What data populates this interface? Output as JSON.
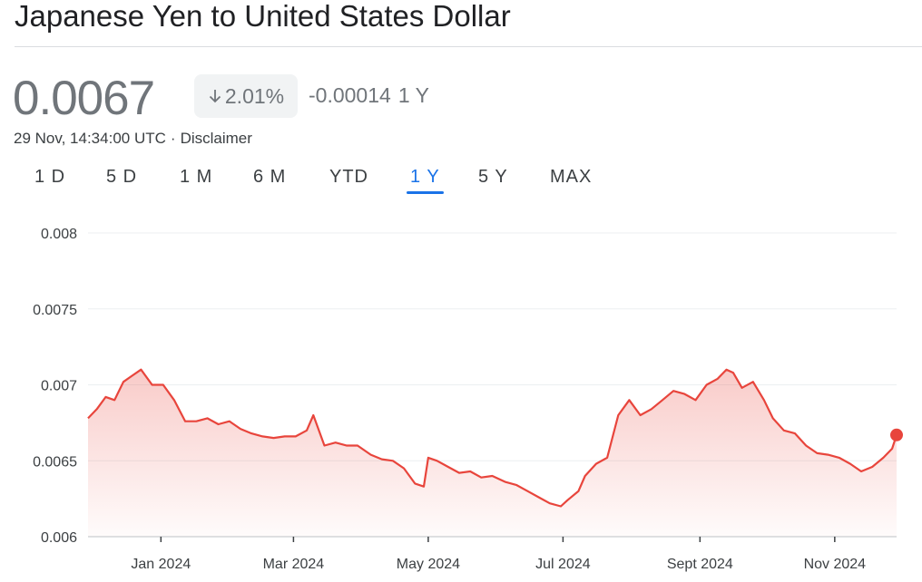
{
  "header": {
    "title": "Japanese Yen to United States Dollar",
    "price": "0.0067",
    "change_percent": "2.01%",
    "change_direction": "down",
    "change_abs": "-0.00014",
    "change_period": "1 Y",
    "timestamp": "29 Nov, 14:34:00 UTC",
    "disclaimer": "Disclaimer"
  },
  "tabs": [
    {
      "label": "1 D",
      "active": false
    },
    {
      "label": "5 D",
      "active": false
    },
    {
      "label": "1 M",
      "active": false
    },
    {
      "label": "6 M",
      "active": false
    },
    {
      "label": "YTD",
      "active": false
    },
    {
      "label": "1 Y",
      "active": true
    },
    {
      "label": "5 Y",
      "active": false
    },
    {
      "label": "MAX",
      "active": false
    }
  ],
  "colors": {
    "line": "#e8453c",
    "accent": "#1a73e8",
    "muted": "#70757a"
  },
  "chart_data": {
    "type": "area",
    "xlabel": "",
    "ylabel": "",
    "ylim": [
      0.006,
      0.008
    ],
    "yticks": [
      0.008,
      0.0075,
      0.007,
      0.0065,
      0.006
    ],
    "ytick_labels": [
      "0.008",
      "0.0075",
      "0.007",
      "0.0065",
      "0.006"
    ],
    "xlim": [
      "2023-11-29",
      "2024-11-29"
    ],
    "xticks": [
      {
        "date": "2024-01-01",
        "label": "Jan 2024"
      },
      {
        "date": "2024-03-01",
        "label": "Mar 2024"
      },
      {
        "date": "2024-05-01",
        "label": "May 2024"
      },
      {
        "date": "2024-07-01",
        "label": "Jul 2024"
      },
      {
        "date": "2024-09-01",
        "label": "Sept 2024"
      },
      {
        "date": "2024-11-01",
        "label": "Nov 2024"
      }
    ],
    "grid": true,
    "series": [
      {
        "x": [
          "2023-11-29",
          "2023-12-03",
          "2023-12-07",
          "2023-12-11",
          "2023-12-15",
          "2023-12-19",
          "2023-12-23",
          "2023-12-28",
          "2024-01-02",
          "2024-01-07",
          "2024-01-12",
          "2024-01-17",
          "2024-01-22",
          "2024-01-27",
          "2024-02-01",
          "2024-02-06",
          "2024-02-11",
          "2024-02-16",
          "2024-02-21",
          "2024-02-26",
          "2024-03-02",
          "2024-03-07",
          "2024-03-10",
          "2024-03-15",
          "2024-03-20",
          "2024-03-25",
          "2024-03-30",
          "2024-04-05",
          "2024-04-10",
          "2024-04-15",
          "2024-04-20",
          "2024-04-25",
          "2024-04-29",
          "2024-05-01",
          "2024-05-05",
          "2024-05-10",
          "2024-05-15",
          "2024-05-20",
          "2024-05-25",
          "2024-05-30",
          "2024-06-05",
          "2024-06-10",
          "2024-06-15",
          "2024-06-20",
          "2024-06-25",
          "2024-06-30",
          "2024-07-03",
          "2024-07-08",
          "2024-07-11",
          "2024-07-16",
          "2024-07-21",
          "2024-07-26",
          "2024-07-31",
          "2024-08-05",
          "2024-08-10",
          "2024-08-15",
          "2024-08-20",
          "2024-08-25",
          "2024-08-30",
          "2024-09-04",
          "2024-09-09",
          "2024-09-13",
          "2024-09-16",
          "2024-09-20",
          "2024-09-25",
          "2024-09-30",
          "2024-10-04",
          "2024-10-09",
          "2024-10-14",
          "2024-10-19",
          "2024-10-24",
          "2024-10-29",
          "2024-11-03",
          "2024-11-08",
          "2024-11-13",
          "2024-11-18",
          "2024-11-23",
          "2024-11-27",
          "2024-11-29"
        ],
        "y": [
          0.00678,
          0.00684,
          0.00692,
          0.0069,
          0.00702,
          0.00706,
          0.0071,
          0.007,
          0.007,
          0.0069,
          0.00676,
          0.00676,
          0.00678,
          0.00674,
          0.00676,
          0.00671,
          0.00668,
          0.00666,
          0.00665,
          0.00666,
          0.00666,
          0.0067,
          0.0068,
          0.0066,
          0.00662,
          0.0066,
          0.0066,
          0.00654,
          0.00651,
          0.0065,
          0.00645,
          0.00635,
          0.00633,
          0.00652,
          0.0065,
          0.00646,
          0.00642,
          0.00643,
          0.00639,
          0.0064,
          0.00636,
          0.00634,
          0.0063,
          0.00626,
          0.00622,
          0.0062,
          0.00624,
          0.0063,
          0.0064,
          0.00648,
          0.00652,
          0.0068,
          0.0069,
          0.0068,
          0.00684,
          0.0069,
          0.00696,
          0.00694,
          0.0069,
          0.007,
          0.00704,
          0.0071,
          0.00708,
          0.00698,
          0.00702,
          0.0069,
          0.00678,
          0.0067,
          0.00668,
          0.0066,
          0.00655,
          0.00654,
          0.00652,
          0.00648,
          0.00643,
          0.00646,
          0.00652,
          0.00658,
          0.00667
        ]
      }
    ],
    "last_point": {
      "x": "2024-11-29",
      "y": 0.00667
    }
  }
}
